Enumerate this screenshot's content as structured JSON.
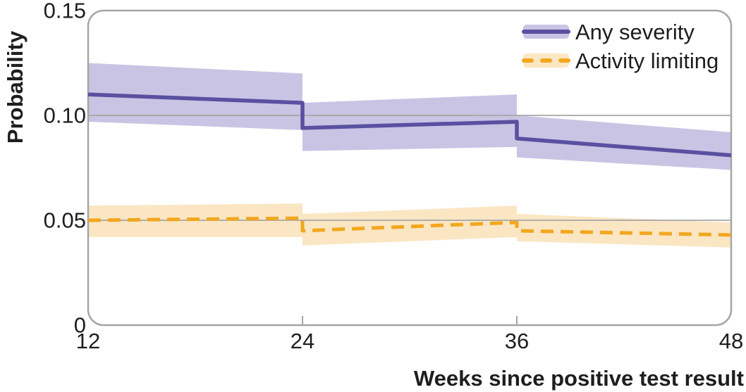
{
  "chart_data": {
    "type": "line",
    "title": "",
    "xlabel": "Weeks since positive test result",
    "ylabel": "Probability",
    "xlim": [
      12,
      48
    ],
    "ylim": [
      0,
      0.15
    ],
    "grid": "horizontal gridlines at interior y ticks",
    "legend_position": "top-right inside plot area",
    "axis_text_color": "#1e1e1e",
    "grid_color": "#a6a6a6",
    "x_ticks": [
      {
        "label": "12",
        "value": 12
      },
      {
        "label": "24",
        "value": 24
      },
      {
        "label": "36",
        "value": 36
      },
      {
        "label": "48",
        "value": 48
      }
    ],
    "y_ticks": [
      {
        "label": "0",
        "value": 0
      },
      {
        "label": "0.05",
        "value": 0.05
      },
      {
        "label": "0.10",
        "value": 0.1
      },
      {
        "label": "0.15",
        "value": 0.15
      }
    ],
    "series": [
      {
        "name": "Any severity",
        "style": "solid",
        "color": "#5a50a0",
        "band_color": "#c9c4e4",
        "x": [
          12,
          24,
          24,
          36,
          36,
          48
        ],
        "y": [
          0.11,
          0.106,
          0.094,
          0.097,
          0.089,
          0.081
        ],
        "ci_upper": [
          0.125,
          0.12,
          0.106,
          0.11,
          0.1,
          0.092
        ],
        "ci_lower": [
          0.097,
          0.093,
          0.083,
          0.085,
          0.08,
          0.074
        ]
      },
      {
        "name": "Activity limiting",
        "style": "dashed",
        "color": "#f2a720",
        "band_color": "#fbe6c4",
        "x": [
          12,
          24,
          24,
          36,
          36,
          48
        ],
        "y": [
          0.05,
          0.051,
          0.045,
          0.049,
          0.045,
          0.043
        ],
        "ci_upper": [
          0.057,
          0.058,
          0.053,
          0.057,
          0.053,
          0.049
        ],
        "ci_lower": [
          0.042,
          0.042,
          0.038,
          0.042,
          0.04,
          0.037
        ]
      }
    ]
  }
}
